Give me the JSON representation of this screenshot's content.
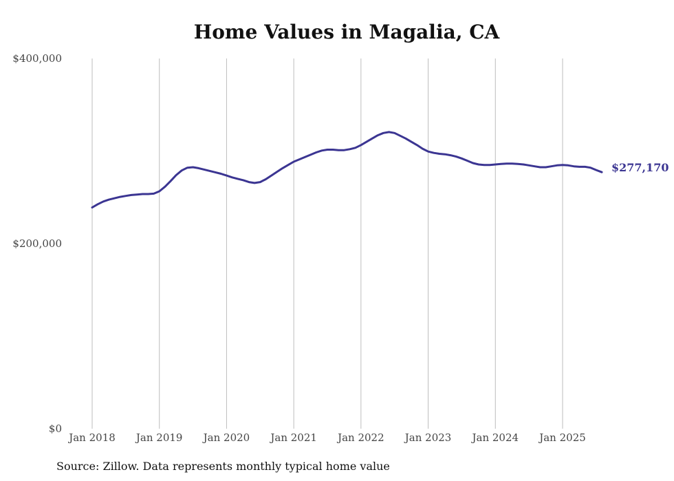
{
  "chart_data": {
    "type": "line",
    "title": "Home Values in Magalia, CA",
    "source": "Source: Zillow. Data represents monthly typical home value",
    "xlabel": "",
    "ylabel": "",
    "ylim": [
      0,
      400000
    ],
    "y_ticks": [
      {
        "value": 0,
        "label": "$0"
      },
      {
        "value": 200000,
        "label": "$200,000"
      },
      {
        "value": 400000,
        "label": "$400,000"
      }
    ],
    "x_ticks": [
      {
        "date": "2018-01",
        "label": "Jan 2018"
      },
      {
        "date": "2019-01",
        "label": "Jan 2019"
      },
      {
        "date": "2020-01",
        "label": "Jan 2020"
      },
      {
        "date": "2021-01",
        "label": "Jan 2021"
      },
      {
        "date": "2022-01",
        "label": "Jan 2022"
      },
      {
        "date": "2023-01",
        "label": "Jan 2023"
      },
      {
        "date": "2024-01",
        "label": "Jan 2024"
      },
      {
        "date": "2025-01",
        "label": "Jan 2025"
      }
    ],
    "grid": {
      "vertical": true,
      "horizontal": false
    },
    "end_label": "$277,170",
    "line_color": "#3b3592",
    "series": [
      {
        "points": [
          [
            "2018-01",
            239000
          ],
          [
            "2018-02",
            242500
          ],
          [
            "2018-03",
            245500
          ],
          [
            "2018-04",
            247500
          ],
          [
            "2018-05",
            249000
          ],
          [
            "2018-06",
            250500
          ],
          [
            "2018-07",
            251500
          ],
          [
            "2018-08",
            252500
          ],
          [
            "2018-09",
            253000
          ],
          [
            "2018-10",
            253500
          ],
          [
            "2018-11",
            253500
          ],
          [
            "2018-12",
            254000
          ],
          [
            "2019-01",
            256500
          ],
          [
            "2019-02",
            261500
          ],
          [
            "2019-03",
            267500
          ],
          [
            "2019-04",
            274000
          ],
          [
            "2019-05",
            279000
          ],
          [
            "2019-06",
            282000
          ],
          [
            "2019-07",
            282500
          ],
          [
            "2019-08",
            281500
          ],
          [
            "2019-09",
            280000
          ],
          [
            "2019-10",
            278500
          ],
          [
            "2019-11",
            277000
          ],
          [
            "2019-12",
            275500
          ],
          [
            "2020-01",
            273500
          ],
          [
            "2020-02",
            271500
          ],
          [
            "2020-03",
            270000
          ],
          [
            "2020-04",
            268500
          ],
          [
            "2020-05",
            266500
          ],
          [
            "2020-06",
            265500
          ],
          [
            "2020-07",
            266500
          ],
          [
            "2020-08",
            269500
          ],
          [
            "2020-09",
            273500
          ],
          [
            "2020-10",
            277500
          ],
          [
            "2020-11",
            281500
          ],
          [
            "2020-12",
            285000
          ],
          [
            "2021-01",
            288500
          ],
          [
            "2021-02",
            291000
          ],
          [
            "2021-03",
            293500
          ],
          [
            "2021-04",
            296000
          ],
          [
            "2021-05",
            298500
          ],
          [
            "2021-06",
            300500
          ],
          [
            "2021-07",
            301500
          ],
          [
            "2021-08",
            301500
          ],
          [
            "2021-09",
            301000
          ],
          [
            "2021-10",
            301000
          ],
          [
            "2021-11",
            302000
          ],
          [
            "2021-12",
            303500
          ],
          [
            "2022-01",
            306500
          ],
          [
            "2022-02",
            310000
          ],
          [
            "2022-03",
            313500
          ],
          [
            "2022-04",
            317000
          ],
          [
            "2022-05",
            319500
          ],
          [
            "2022-06",
            320500
          ],
          [
            "2022-07",
            319500
          ],
          [
            "2022-08",
            316500
          ],
          [
            "2022-09",
            313500
          ],
          [
            "2022-10",
            310000
          ],
          [
            "2022-11",
            306500
          ],
          [
            "2022-12",
            302500
          ],
          [
            "2023-01",
            299500
          ],
          [
            "2023-02",
            298000
          ],
          [
            "2023-03",
            297000
          ],
          [
            "2023-04",
            296500
          ],
          [
            "2023-05",
            295500
          ],
          [
            "2023-06",
            294000
          ],
          [
            "2023-07",
            292000
          ],
          [
            "2023-08",
            289500
          ],
          [
            "2023-09",
            287000
          ],
          [
            "2023-10",
            285500
          ],
          [
            "2023-11",
            285000
          ],
          [
            "2023-12",
            285000
          ],
          [
            "2024-01",
            285500
          ],
          [
            "2024-02",
            286000
          ],
          [
            "2024-03",
            286500
          ],
          [
            "2024-04",
            286500
          ],
          [
            "2024-05",
            286000
          ],
          [
            "2024-06",
            285500
          ],
          [
            "2024-07",
            284500
          ],
          [
            "2024-08",
            283500
          ],
          [
            "2024-09",
            282500
          ],
          [
            "2024-10",
            282500
          ],
          [
            "2024-11",
            283500
          ],
          [
            "2024-12",
            284500
          ],
          [
            "2025-01",
            285000
          ],
          [
            "2025-02",
            284500
          ],
          [
            "2025-03",
            283500
          ],
          [
            "2025-04",
            283000
          ],
          [
            "2025-05",
            283000
          ],
          [
            "2025-06",
            282000
          ],
          [
            "2025-07",
            279500
          ],
          [
            "2025-08",
            277170
          ]
        ]
      }
    ]
  }
}
